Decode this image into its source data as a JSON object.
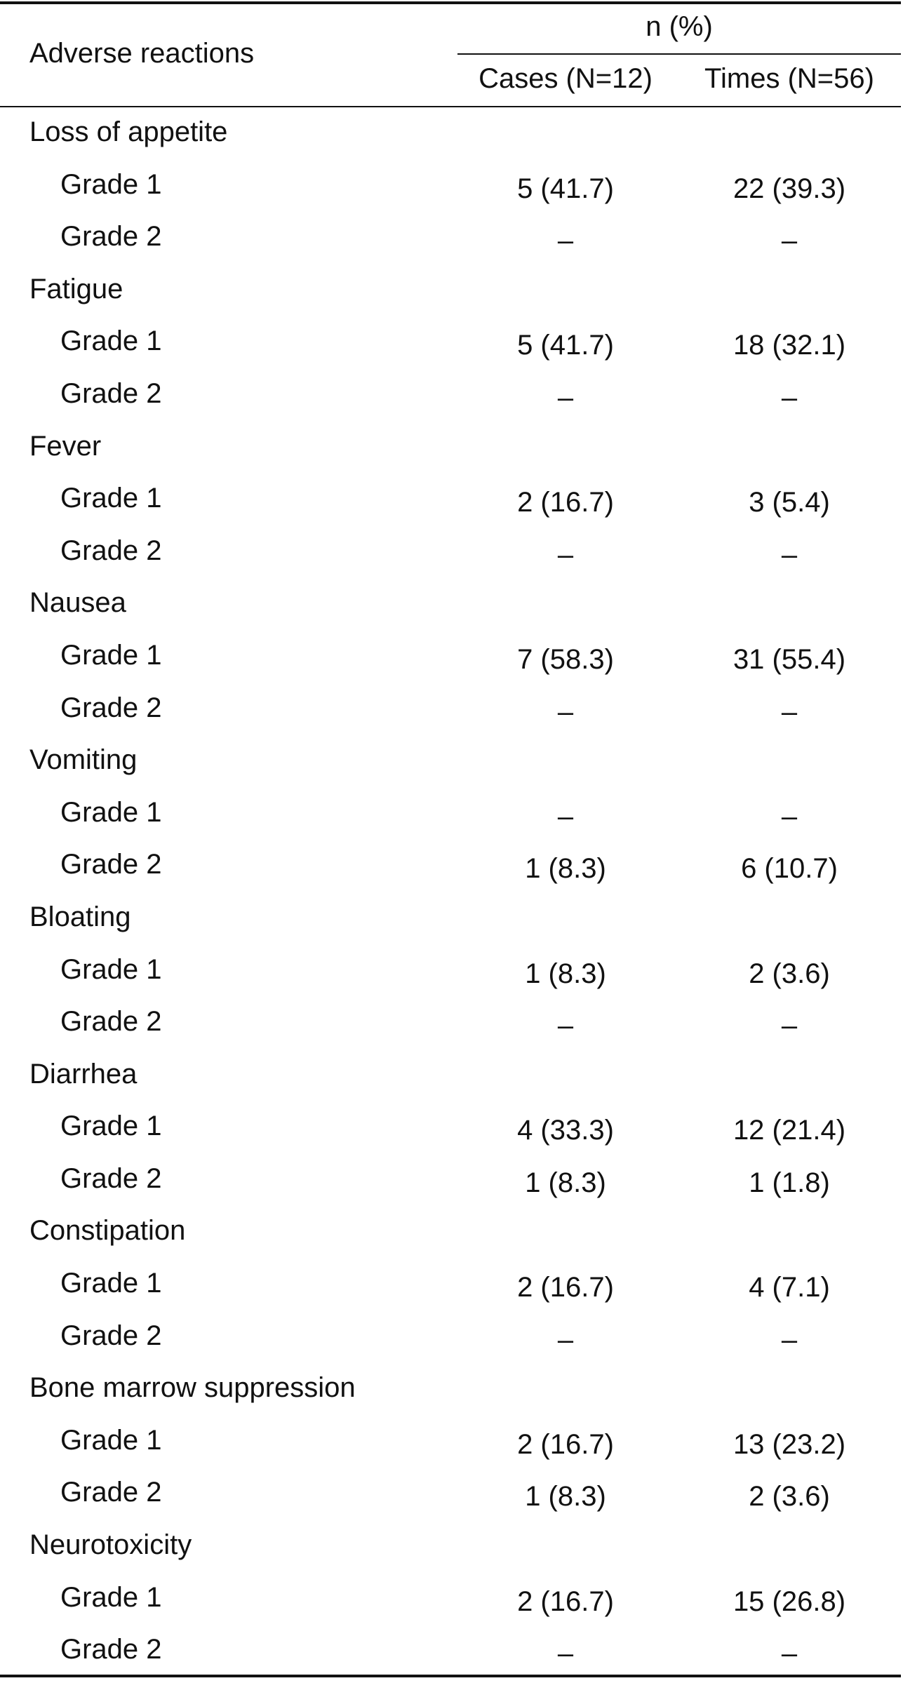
{
  "header": {
    "row_label": "Adverse reactions",
    "group_label": "n (%)",
    "columns": [
      "Cases (N=12)",
      "Times (N=56)"
    ]
  },
  "rows": [
    {
      "type": "category",
      "label": "Loss of appetite"
    },
    {
      "type": "grade",
      "label": "Grade 1",
      "cases": "5 (41.7)",
      "times": "22 (39.3)"
    },
    {
      "type": "grade",
      "label": "Grade 2",
      "cases": "–",
      "times": "–"
    },
    {
      "type": "category",
      "label": "Fatigue"
    },
    {
      "type": "grade",
      "label": "Grade 1",
      "cases": "5 (41.7)",
      "times": "18 (32.1)"
    },
    {
      "type": "grade",
      "label": "Grade 2",
      "cases": "–",
      "times": "–"
    },
    {
      "type": "category",
      "label": "Fever"
    },
    {
      "type": "grade",
      "label": "Grade 1",
      "cases": "2 (16.7)",
      "times": "3 (5.4)"
    },
    {
      "type": "grade",
      "label": "Grade 2",
      "cases": "–",
      "times": "–"
    },
    {
      "type": "category",
      "label": "Nausea"
    },
    {
      "type": "grade",
      "label": "Grade 1",
      "cases": "7 (58.3)",
      "times": "31 (55.4)"
    },
    {
      "type": "grade",
      "label": "Grade 2",
      "cases": "–",
      "times": "–"
    },
    {
      "type": "category",
      "label": "Vomiting"
    },
    {
      "type": "grade",
      "label": "Grade 1",
      "cases": "–",
      "times": "–"
    },
    {
      "type": "grade",
      "label": "Grade 2",
      "cases": "1 (8.3)",
      "times": "6 (10.7)"
    },
    {
      "type": "category",
      "label": "Bloating"
    },
    {
      "type": "grade",
      "label": "Grade 1",
      "cases": "1 (8.3)",
      "times": "2 (3.6)"
    },
    {
      "type": "grade",
      "label": "Grade 2",
      "cases": "–",
      "times": "–"
    },
    {
      "type": "category",
      "label": "Diarrhea"
    },
    {
      "type": "grade",
      "label": "Grade 1",
      "cases": "4 (33.3)",
      "times": "12 (21.4)"
    },
    {
      "type": "grade",
      "label": "Grade 2",
      "cases": "1 (8.3)",
      "times": "1 (1.8)"
    },
    {
      "type": "category",
      "label": "Constipation"
    },
    {
      "type": "grade",
      "label": "Grade 1",
      "cases": "2 (16.7)",
      "times": "4 (7.1)"
    },
    {
      "type": "grade",
      "label": "Grade 2",
      "cases": "–",
      "times": "–"
    },
    {
      "type": "category",
      "label": "Bone marrow suppression"
    },
    {
      "type": "grade",
      "label": "Grade 1",
      "cases": "2 (16.7)",
      "times": "13 (23.2)"
    },
    {
      "type": "grade",
      "label": "Grade 2",
      "cases": "1 (8.3)",
      "times": "2 (3.6)"
    },
    {
      "type": "category",
      "label": "Neurotoxicity"
    },
    {
      "type": "grade",
      "label": "Grade 1",
      "cases": "2 (16.7)",
      "times": "15 (26.8)"
    },
    {
      "type": "grade",
      "label": "Grade 2",
      "cases": "–",
      "times": "–"
    }
  ]
}
